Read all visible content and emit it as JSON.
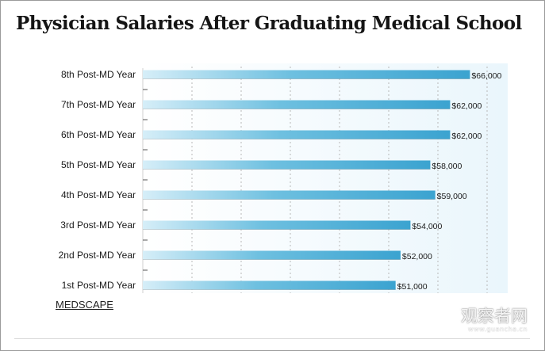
{
  "page": {
    "title": "Physician Salaries After Graduating Medical School",
    "source": "MEDSCAPE",
    "watermark": "观察者网",
    "watermark_url": "www.guancha.cn"
  },
  "chart_data": {
    "type": "bar",
    "orientation": "horizontal",
    "title": "Physician Salaries After Graduating Medical School",
    "categories": [
      "8th Post-MD Year",
      "7th Post-MD Year",
      "6th Post-MD Year",
      "5th Post-MD Year",
      "4th Post-MD Year",
      "3rd Post-MD Year",
      "2nd Post-MD Year",
      "1st Post-MD Year"
    ],
    "values": [
      66000,
      62000,
      62000,
      58000,
      59000,
      54000,
      52000,
      51000
    ],
    "value_labels": [
      "$66,000",
      "$62,000",
      "$62,000",
      "$58,000",
      "$59,000",
      "$54,000",
      "$52,000",
      "$51,000"
    ],
    "xlabel": "",
    "ylabel": "",
    "xlim": [
      0,
      70000
    ],
    "grid": true,
    "colors": {
      "bar_start": "#d6eef8",
      "bar_mid": "#6ec0e0",
      "bar_end": "#3ba3d0",
      "plot_bg_light": "#ffffff",
      "plot_bg_tint": "#eaf6fc",
      "grid": "#b8b8b8"
    }
  }
}
